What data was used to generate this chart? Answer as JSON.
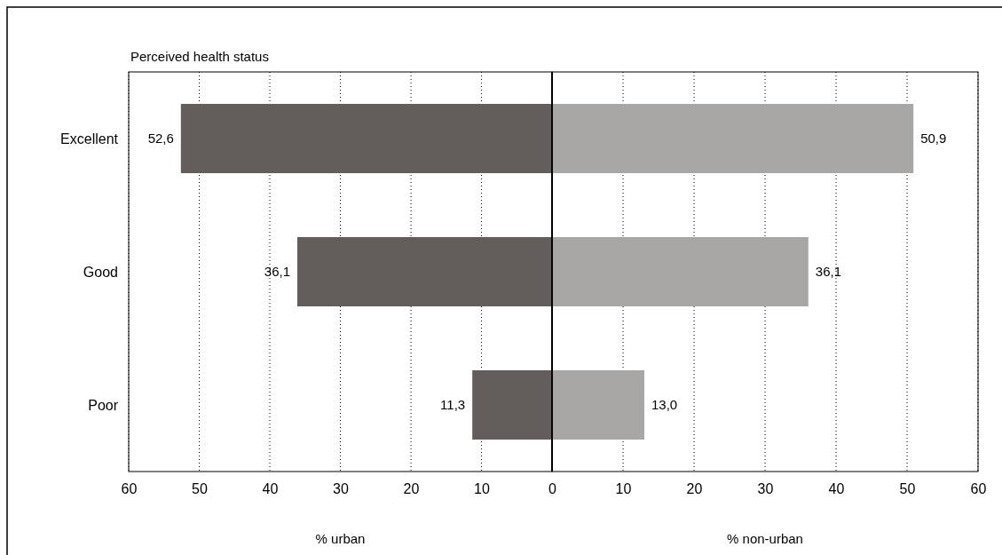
{
  "chart_data": [
    {
      "type": "bar",
      "orientation": "horizontal",
      "title": "Perceived health status",
      "xlabel": "% urban",
      "categories": [
        "Excellent",
        "Good",
        "Poor"
      ],
      "values": [
        52.6,
        36.1,
        11.3
      ],
      "value_labels": [
        "52,6",
        "36,1",
        "11,3"
      ],
      "color": "#635e5b",
      "xlim": [
        60,
        0
      ],
      "xticks": [
        60,
        50,
        40,
        30,
        20,
        10,
        0
      ],
      "grid": "x"
    },
    {
      "type": "bar",
      "orientation": "horizontal",
      "xlabel": "% non-urban",
      "categories": [
        null,
        null,
        null
      ],
      "values": [
        50.9,
        36.1,
        13.0
      ],
      "value_labels": [
        "50,9",
        "36,1",
        "13,0"
      ],
      "color": "#a8a7a6",
      "xlim": [
        0,
        60
      ],
      "xticks": [
        {
          "value": 0,
          "label": null
        },
        10,
        20,
        30,
        40,
        50,
        60
      ],
      "grid": "x",
      "tick_labels": "x"
    }
  ]
}
